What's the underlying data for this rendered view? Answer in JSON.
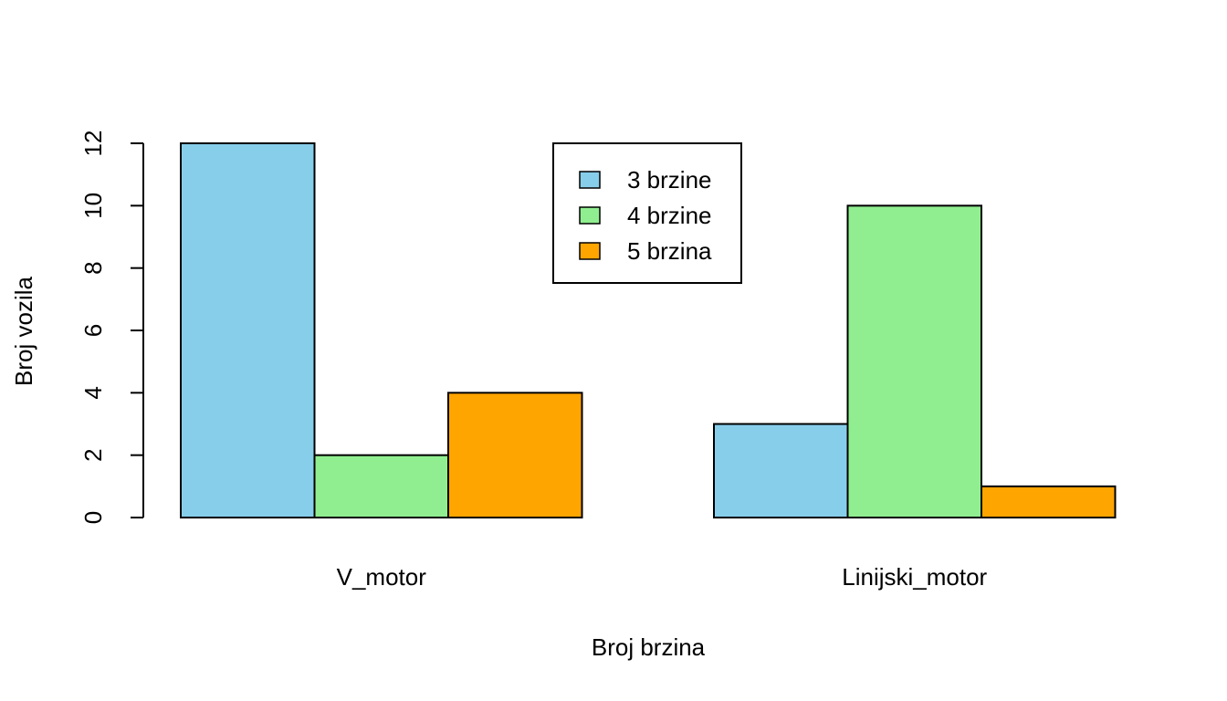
{
  "chart_data": {
    "type": "bar",
    "grouped": true,
    "categories": [
      "V_motor",
      "Linijski_motor"
    ],
    "series": [
      {
        "name": "3 brzine",
        "color": "#87CEEB",
        "values": [
          12,
          3
        ]
      },
      {
        "name": "4 brzine",
        "color": "#90EE90",
        "values": [
          2,
          10
        ]
      },
      {
        "name": "5 brzina",
        "color": "#FFA500",
        "values": [
          4,
          1
        ]
      }
    ],
    "xlabel": "Broj brzina",
    "ylabel": "Broj vozila",
    "ylim": [
      0,
      12
    ],
    "yticks": [
      0,
      2,
      4,
      6,
      8,
      10,
      12
    ],
    "grid": false,
    "legend_position": "top-center",
    "bar_border_color": "#000000"
  }
}
